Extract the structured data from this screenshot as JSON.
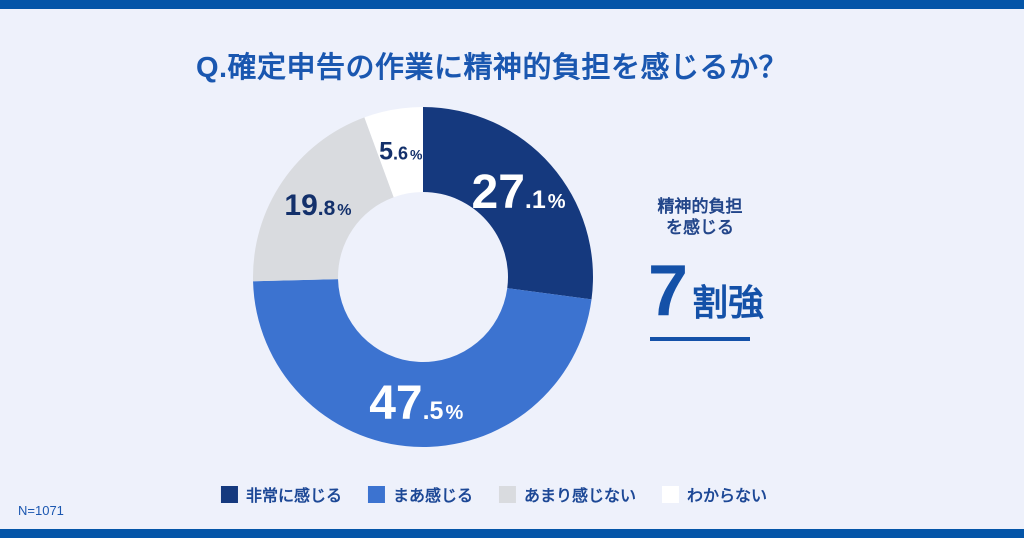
{
  "title": "Q.確定申告の作業に精神的負担を感じるか？",
  "sample_size": "N=1071",
  "side_note": {
    "line1": "精神的負担",
    "line2": "を感じる",
    "big_number": "7",
    "big_suffix": "割強"
  },
  "colors": {
    "accent_bar": "#0455a8",
    "background": "#eef1fb",
    "title": "#1a57b0",
    "highlight": "#1451a8",
    "dark_label": "#13306b",
    "legend_text": "#1d4896"
  },
  "chart_data": {
    "type": "pie",
    "subtype": "donut",
    "title": "Q.確定申告の作業に精神的負担を感じるか？",
    "categories": [
      "非常に感じる",
      "まあ感じる",
      "あまり感じない",
      "わからない"
    ],
    "values": [
      27.1,
      47.5,
      19.8,
      5.6
    ],
    "colors": [
      "#15397e",
      "#3c73d0",
      "#d9dbdf",
      "#ffffff"
    ],
    "unit": "%",
    "start_angle_deg_from_top": 0,
    "direction": "clockwise",
    "label_styles": [
      "lbl-light",
      "lbl-light",
      "lbl-dark lbl-dark-md",
      "lbl-dark lbl-dark-sm"
    ],
    "legend_position": "bottom",
    "annotation": "精神的負担を感じる 7割強",
    "sample": "N=1071"
  }
}
